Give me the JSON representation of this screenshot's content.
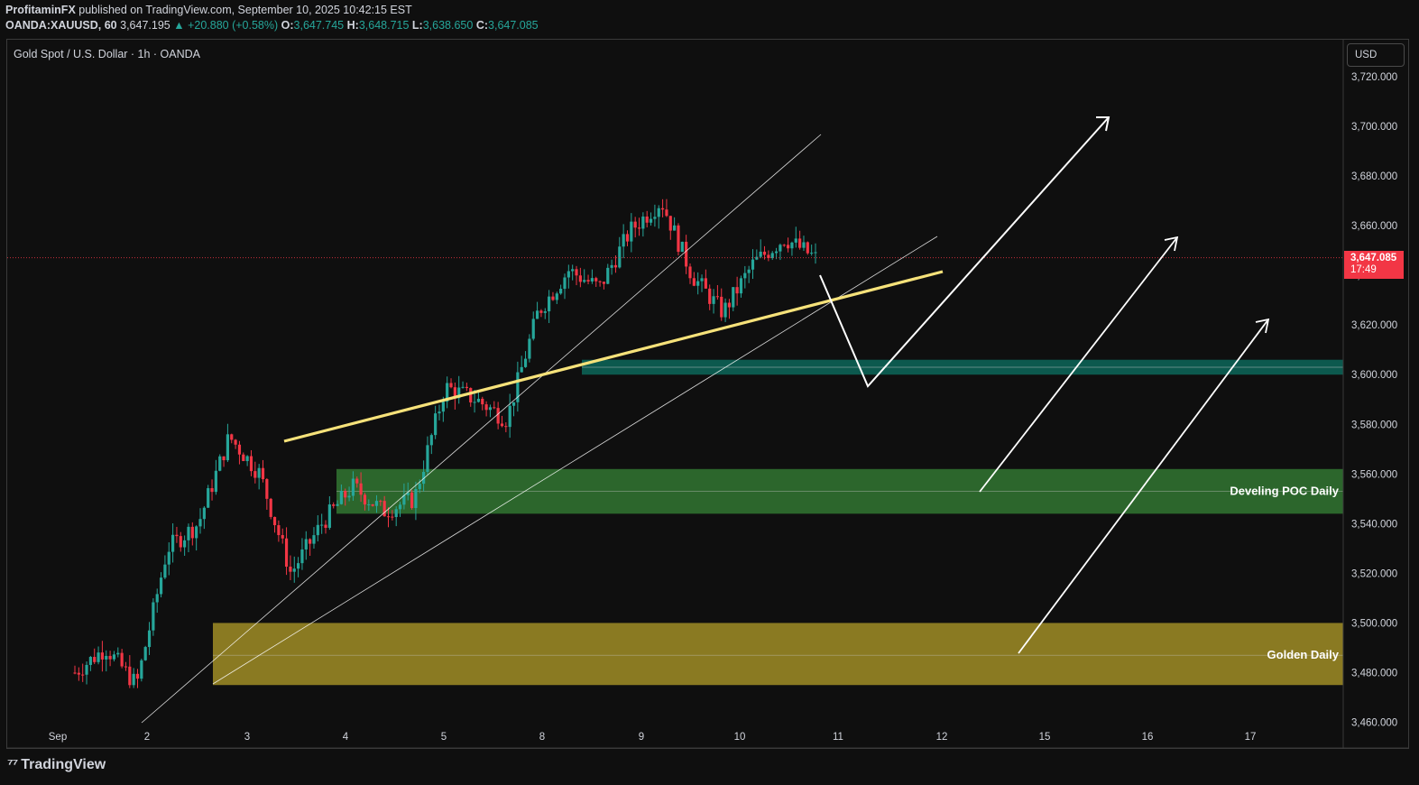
{
  "header": {
    "author": "ProfitaminFX",
    "published": "published on TradingView.com, September 10, 2025 10:42:15 EST",
    "symbol": "OANDA:XAUUSD, 60",
    "last": "3,647.195",
    "change": "▲ +20.880 (+0.58%)",
    "o_label": "O:",
    "o": "3,647.745",
    "h_label": "H:",
    "h": "3,648.715",
    "l_label": "L:",
    "l": "3,638.650",
    "c_label": "C:",
    "c": "3,647.085"
  },
  "legend": "Gold Spot / U.S. Dollar · 1h · OANDA",
  "currency_button": "USD",
  "price_tag": {
    "price": "3,647.085",
    "countdown": "17:49"
  },
  "brand": "TradingView",
  "colors": {
    "up": "#26a69a",
    "down": "#f23645",
    "trendline": "#f6e27a",
    "poc_zone": "#2e6b2e",
    "golden_zone": "#8a7a22",
    "teal_zone": "#0d5e52"
  },
  "chart_data": {
    "type": "candlestick",
    "title": "Gold Spot / U.S. Dollar · 1h · OANDA",
    "ylim": [
      3460,
      3725
    ],
    "yticks": [
      "3,460.000",
      "3,480.000",
      "3,500.000",
      "3,520.000",
      "3,540.000",
      "3,560.000",
      "3,580.000",
      "3,600.000",
      "3,620.000",
      "3,640.000",
      "3,660.000",
      "3,680.000",
      "3,700.000",
      "3,720.000"
    ],
    "ytick_values": [
      3460,
      3480,
      3500,
      3520,
      3540,
      3560,
      3580,
      3600,
      3620,
      3640,
      3660,
      3680,
      3700,
      3720
    ],
    "xticks": [
      "Sep",
      "2",
      "3",
      "4",
      "5",
      "8",
      "9",
      "10",
      "11",
      "12",
      "15",
      "16",
      "17"
    ],
    "last_price": 3647.085,
    "zones": [
      {
        "name": "Develing POC Daily",
        "low": 3544,
        "high": 3562,
        "mid": 3553
      },
      {
        "name": "Golden Daily",
        "low": 3475,
        "high": 3500,
        "mid": 3487
      },
      {
        "name": "",
        "low": 3600,
        "high": 3606,
        "mid": 3603
      }
    ],
    "approx_path": [
      {
        "x": "Sep 1",
        "y": 3480
      },
      {
        "x": "Sep 2",
        "y": 3490
      },
      {
        "x": "Sep 2",
        "y": 3475
      },
      {
        "x": "Sep 3",
        "y": 3530
      },
      {
        "x": "Sep 3",
        "y": 3540
      },
      {
        "x": "Sep 3",
        "y": 3575
      },
      {
        "x": "Sep 4",
        "y": 3560
      },
      {
        "x": "Sep 4",
        "y": 3520
      },
      {
        "x": "Sep 4",
        "y": 3540
      },
      {
        "x": "Sep 5",
        "y": 3555
      },
      {
        "x": "Sep 5",
        "y": 3545
      },
      {
        "x": "Sep 5",
        "y": 3550
      },
      {
        "x": "Sep 5",
        "y": 3595
      },
      {
        "x": "Sep 8",
        "y": 3590
      },
      {
        "x": "Sep 8",
        "y": 3582
      },
      {
        "x": "Sep 8",
        "y": 3625
      },
      {
        "x": "Sep 8",
        "y": 3642
      },
      {
        "x": "Sep 9",
        "y": 3635
      },
      {
        "x": "Sep 9",
        "y": 3658
      },
      {
        "x": "Sep 9",
        "y": 3670
      },
      {
        "x": "Sep 9",
        "y": 3640
      },
      {
        "x": "Sep 10",
        "y": 3625
      },
      {
        "x": "Sep 10",
        "y": 3645
      },
      {
        "x": "Sep 10",
        "y": 3655
      },
      {
        "x": "Sep 10",
        "y": 3647
      }
    ]
  }
}
